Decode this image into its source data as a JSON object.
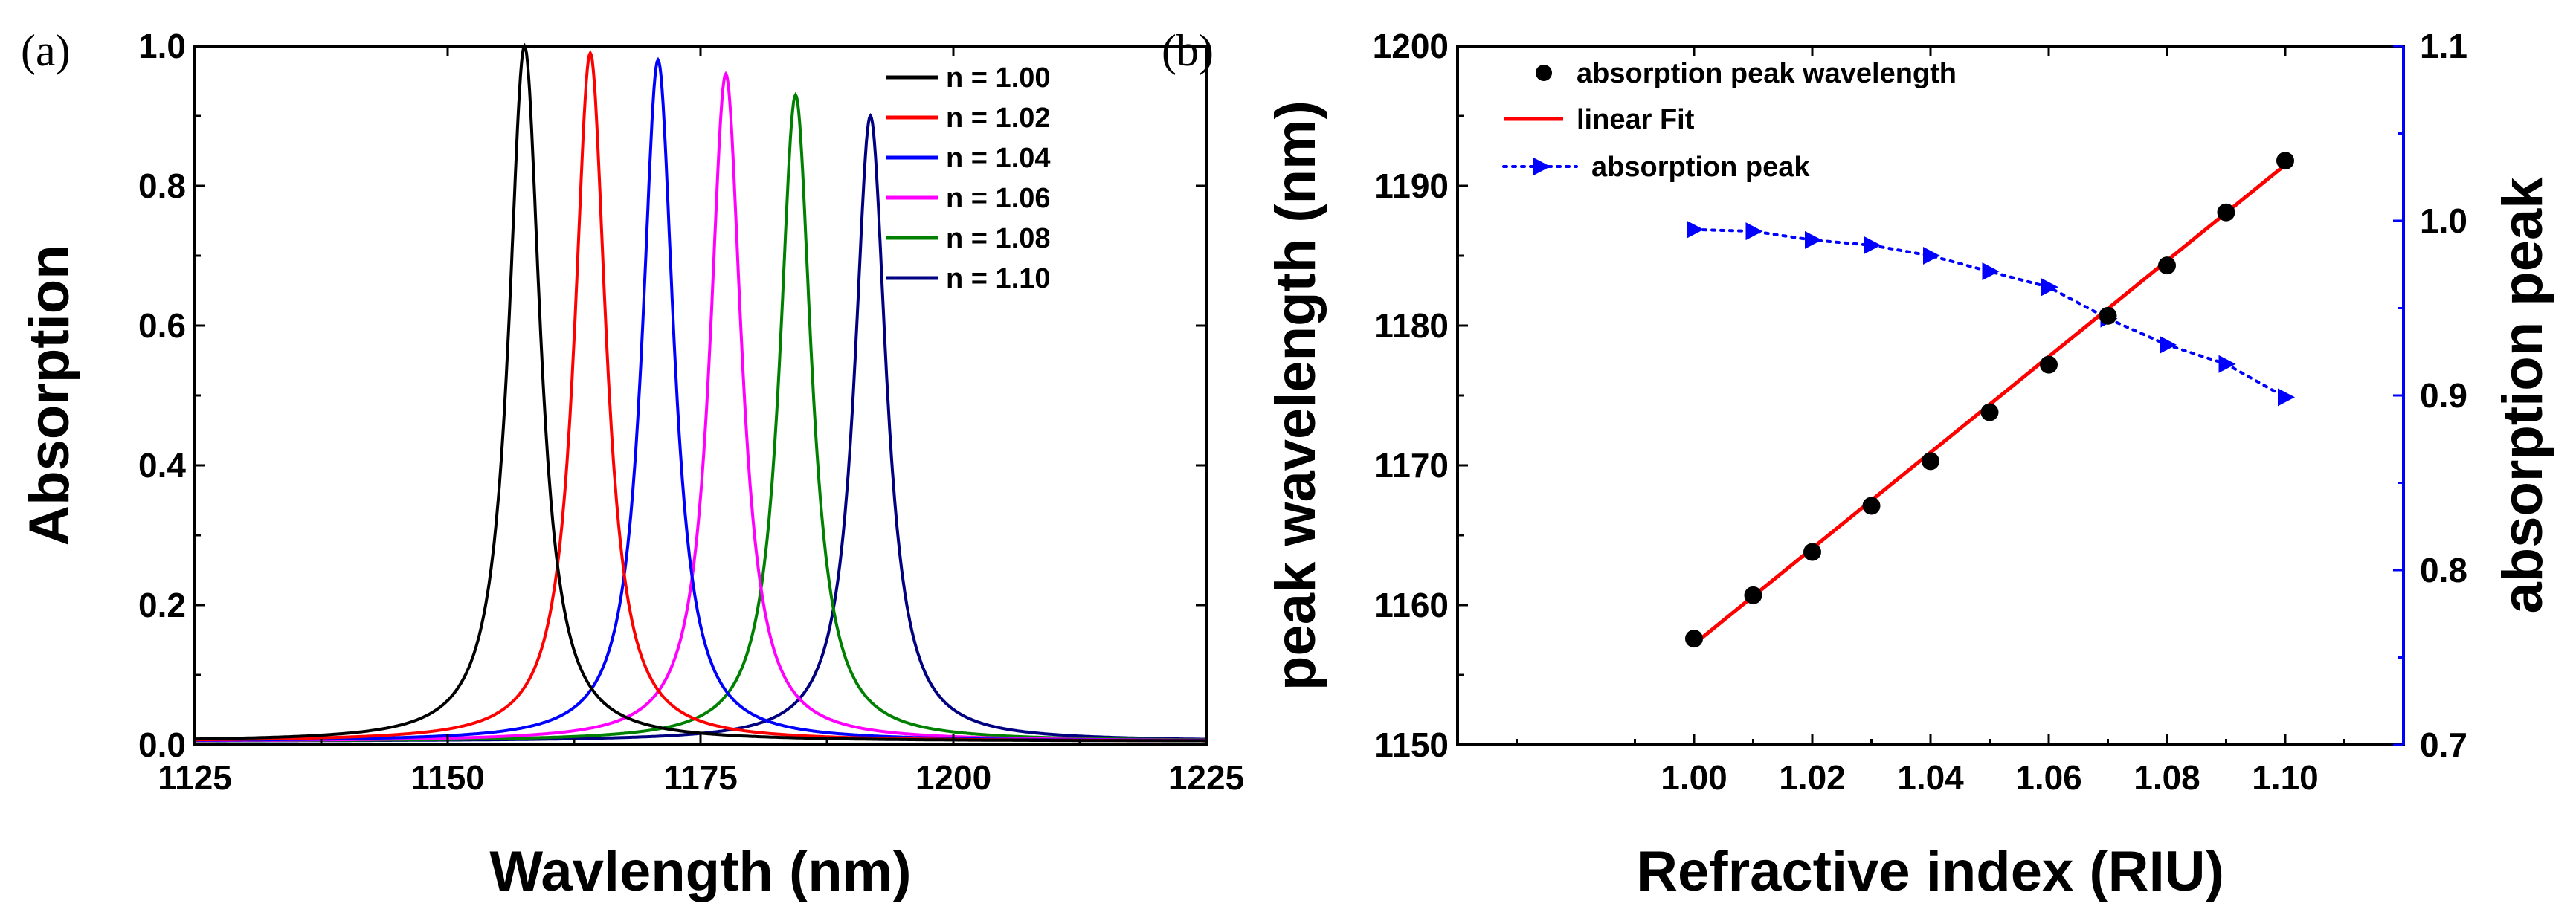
{
  "chart_data": [
    {
      "panel_label": "(a)",
      "type": "line",
      "xlabel": "Wavlength (nm)",
      "ylabel": "Absorption",
      "xlim": [
        1125,
        1225
      ],
      "ylim": [
        0.0,
        1.0
      ],
      "x_ticks": [
        "1125",
        "1150",
        "1175",
        "1200",
        "1225"
      ],
      "y_ticks": [
        "0.0",
        "0.2",
        "0.4",
        "0.6",
        "0.8",
        "1.0"
      ],
      "legend_position": "top-right",
      "linewidth_nm": 1.9,
      "baseline": 0.005,
      "series": [
        {
          "name": "n = 1.00",
          "color": "#000000",
          "peak_x": 1157.6,
          "peak_y": 1.0
        },
        {
          "name": "n = 1.02",
          "color": "#ff0000",
          "peak_x": 1164.1,
          "peak_y": 0.99
        },
        {
          "name": "n = 1.04",
          "color": "#0000ff",
          "peak_x": 1170.8,
          "peak_y": 0.98
        },
        {
          "name": "n = 1.06",
          "color": "#ff00ff",
          "peak_x": 1177.5,
          "peak_y": 0.96
        },
        {
          "name": "n = 1.08",
          "color": "#008000",
          "peak_x": 1184.4,
          "peak_y": 0.93
        },
        {
          "name": "n = 1.10",
          "color": "#000080",
          "peak_x": 1191.8,
          "peak_y": 0.9
        }
      ]
    },
    {
      "panel_label": "(b)",
      "type": "scatter",
      "xlabel": "Refractive index (RIU)",
      "ylabel": "peak wavelength (nm)",
      "y2label": "absorption peak",
      "xlim": [
        0.96,
        1.12
      ],
      "ylim": [
        1150,
        1200
      ],
      "y2lim": [
        0.7,
        1.1
      ],
      "x_ticks": [
        "1.00",
        "1.02",
        "1.04",
        "1.06",
        "1.08",
        "1.10"
      ],
      "y_ticks": [
        "1150",
        "1160",
        "1170",
        "1180",
        "1190",
        "1200"
      ],
      "y2_ticks": [
        "0.7",
        "0.8",
        "0.9",
        "1.0",
        "1.1"
      ],
      "legend_position": "top-left",
      "x": [
        1.0,
        1.01,
        1.02,
        1.03,
        1.04,
        1.05,
        1.06,
        1.07,
        1.08,
        1.09,
        1.1
      ],
      "series": [
        {
          "name": "absorption peak wavelength",
          "color": "#000000",
          "axis": "left",
          "style": "dots",
          "values": [
            1157.6,
            1160.7,
            1163.8,
            1167.1,
            1170.3,
            1173.8,
            1177.2,
            1180.7,
            1184.3,
            1188.1,
            1191.8
          ]
        },
        {
          "name": "linear Fit",
          "color": "#ff0000",
          "axis": "left",
          "style": "line",
          "x_range": [
            1.0,
            1.1
          ],
          "values": [
            1157.2,
            1191.5
          ]
        },
        {
          "name": "absorption peak",
          "color": "#0000ff",
          "axis": "right",
          "style": "dotted-triangles",
          "values": [
            0.995,
            0.994,
            0.989,
            0.986,
            0.98,
            0.971,
            0.962,
            0.944,
            0.929,
            0.918,
            0.899
          ]
        }
      ]
    }
  ]
}
